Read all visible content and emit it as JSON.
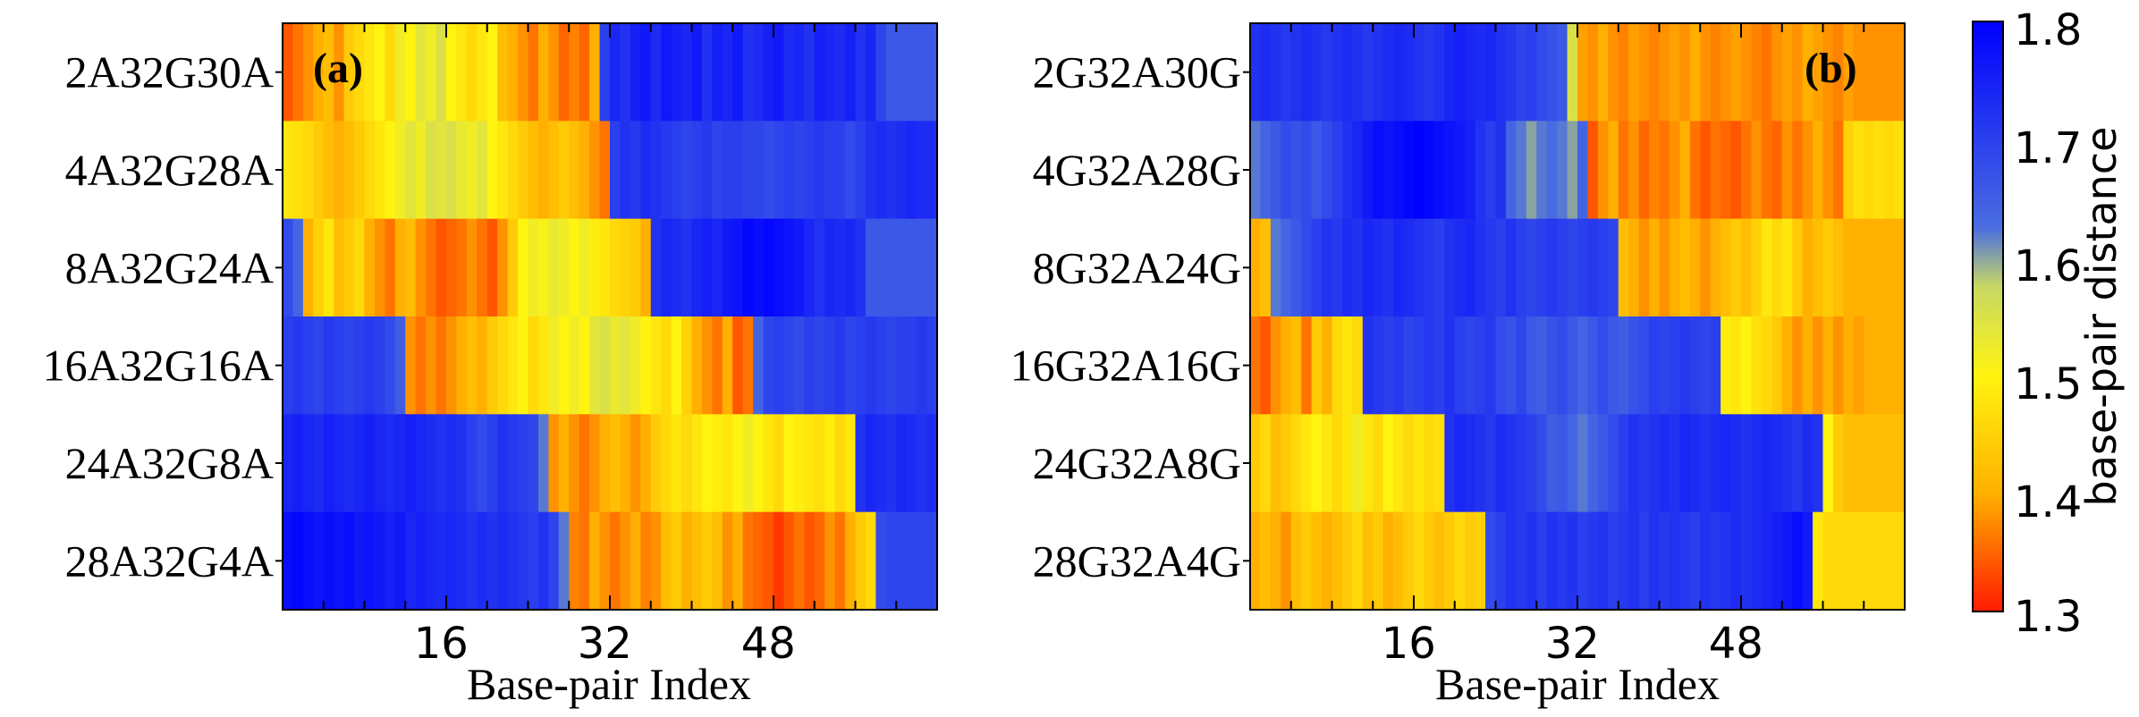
{
  "chart_data": [
    {
      "type": "heatmap",
      "panel_label": "(a)",
      "xlabel": "Base-pair Index",
      "xticks": [
        16,
        32,
        48
      ],
      "x_range": [
        1,
        64
      ],
      "rows": [
        {
          "label": "2A32G30A",
          "values": [
            1.34,
            1.36,
            1.38,
            1.4,
            1.42,
            1.38,
            1.44,
            1.46,
            1.48,
            1.5,
            1.46,
            1.52,
            1.5,
            1.54,
            1.52,
            1.55,
            1.5,
            1.48,
            1.46,
            1.48,
            1.5,
            1.42,
            1.4,
            1.38,
            1.36,
            1.4,
            1.38,
            1.35,
            1.37,
            1.35,
            1.4,
            1.7,
            1.74,
            1.72,
            1.75,
            1.76,
            1.73,
            1.76,
            1.75,
            1.74,
            1.76,
            1.72,
            1.75,
            1.74,
            1.76,
            1.72,
            1.73,
            1.75,
            1.76,
            1.73,
            1.74,
            1.72,
            1.75,
            1.74,
            1.73,
            1.75,
            1.72,
            1.74,
            1.69,
            1.66,
            1.66,
            1.66,
            1.66,
            1.66
          ]
        },
        {
          "label": "4A32G28A",
          "values": [
            1.48,
            1.47,
            1.46,
            1.44,
            1.42,
            1.4,
            1.42,
            1.44,
            1.46,
            1.48,
            1.5,
            1.52,
            1.54,
            1.52,
            1.55,
            1.54,
            1.55,
            1.53,
            1.52,
            1.54,
            1.5,
            1.48,
            1.46,
            1.44,
            1.42,
            1.4,
            1.42,
            1.44,
            1.42,
            1.4,
            1.38,
            1.36,
            1.7,
            1.72,
            1.71,
            1.73,
            1.72,
            1.71,
            1.7,
            1.69,
            1.7,
            1.71,
            1.69,
            1.7,
            1.7,
            1.69,
            1.69,
            1.68,
            1.69,
            1.7,
            1.69,
            1.7,
            1.71,
            1.7,
            1.7,
            1.68,
            1.7,
            1.72,
            1.73,
            1.72,
            1.73,
            1.74,
            1.73,
            1.73
          ]
        },
        {
          "label": "8A32G24A",
          "values": [
            1.68,
            1.64,
            1.4,
            1.45,
            1.48,
            1.42,
            1.44,
            1.46,
            1.4,
            1.38,
            1.36,
            1.4,
            1.42,
            1.38,
            1.36,
            1.34,
            1.35,
            1.36,
            1.38,
            1.36,
            1.34,
            1.38,
            1.44,
            1.5,
            1.52,
            1.51,
            1.53,
            1.52,
            1.5,
            1.52,
            1.49,
            1.48,
            1.46,
            1.45,
            1.44,
            1.4,
            1.72,
            1.74,
            1.73,
            1.72,
            1.74,
            1.75,
            1.74,
            1.76,
            1.77,
            1.79,
            1.78,
            1.79,
            1.78,
            1.77,
            1.76,
            1.74,
            1.72,
            1.74,
            1.73,
            1.74,
            1.72,
            1.66,
            1.66,
            1.66,
            1.66,
            1.66,
            1.66,
            1.66
          ]
        },
        {
          "label": "16A32G16A",
          "values": [
            1.7,
            1.71,
            1.7,
            1.69,
            1.71,
            1.7,
            1.69,
            1.7,
            1.71,
            1.7,
            1.68,
            1.65,
            1.38,
            1.36,
            1.38,
            1.36,
            1.38,
            1.4,
            1.42,
            1.4,
            1.44,
            1.46,
            1.48,
            1.5,
            1.46,
            1.48,
            1.52,
            1.5,
            1.52,
            1.5,
            1.54,
            1.55,
            1.53,
            1.54,
            1.52,
            1.5,
            1.48,
            1.46,
            1.5,
            1.45,
            1.4,
            1.38,
            1.36,
            1.4,
            1.34,
            1.36,
            1.64,
            1.69,
            1.7,
            1.69,
            1.68,
            1.7,
            1.69,
            1.7,
            1.71,
            1.69,
            1.7,
            1.71,
            1.7,
            1.69,
            1.7,
            1.7,
            1.71,
            1.7
          ]
        },
        {
          "label": "24A32G8A",
          "values": [
            1.74,
            1.75,
            1.74,
            1.73,
            1.75,
            1.74,
            1.73,
            1.74,
            1.75,
            1.74,
            1.73,
            1.74,
            1.75,
            1.74,
            1.73,
            1.72,
            1.73,
            1.72,
            1.7,
            1.68,
            1.7,
            1.72,
            1.71,
            1.7,
            1.69,
            1.62,
            1.38,
            1.4,
            1.38,
            1.36,
            1.38,
            1.4,
            1.42,
            1.4,
            1.38,
            1.4,
            1.44,
            1.46,
            1.48,
            1.46,
            1.48,
            1.5,
            1.49,
            1.48,
            1.5,
            1.52,
            1.5,
            1.48,
            1.46,
            1.5,
            1.49,
            1.48,
            1.47,
            1.49,
            1.46,
            1.48,
            1.72,
            1.74,
            1.73,
            1.72,
            1.74,
            1.73,
            1.72,
            1.73
          ]
        },
        {
          "label": "28A32G4A",
          "values": [
            1.78,
            1.79,
            1.78,
            1.77,
            1.78,
            1.77,
            1.78,
            1.76,
            1.77,
            1.76,
            1.75,
            1.76,
            1.74,
            1.75,
            1.74,
            1.73,
            1.74,
            1.73,
            1.72,
            1.73,
            1.72,
            1.73,
            1.72,
            1.71,
            1.7,
            1.72,
            1.69,
            1.62,
            1.37,
            1.36,
            1.4,
            1.38,
            1.36,
            1.38,
            1.4,
            1.37,
            1.38,
            1.42,
            1.44,
            1.4,
            1.42,
            1.44,
            1.42,
            1.38,
            1.4,
            1.36,
            1.35,
            1.34,
            1.32,
            1.34,
            1.36,
            1.34,
            1.35,
            1.38,
            1.36,
            1.4,
            1.44,
            1.46,
            1.68,
            1.69,
            1.69,
            1.69,
            1.69,
            1.69
          ]
        }
      ]
    },
    {
      "type": "heatmap",
      "panel_label": "(b)",
      "xlabel": "Base-pair Index",
      "xticks": [
        16,
        32,
        48
      ],
      "x_range": [
        1,
        64
      ],
      "rows": [
        {
          "label": "2G32A30G",
          "values": [
            1.72,
            1.73,
            1.72,
            1.71,
            1.72,
            1.73,
            1.72,
            1.71,
            1.72,
            1.73,
            1.72,
            1.71,
            1.72,
            1.73,
            1.74,
            1.73,
            1.72,
            1.71,
            1.72,
            1.74,
            1.75,
            1.74,
            1.73,
            1.74,
            1.72,
            1.71,
            1.69,
            1.7,
            1.68,
            1.67,
            1.66,
            1.55,
            1.39,
            1.38,
            1.4,
            1.38,
            1.37,
            1.39,
            1.38,
            1.37,
            1.38,
            1.39,
            1.38,
            1.4,
            1.38,
            1.37,
            1.38,
            1.39,
            1.38,
            1.37,
            1.36,
            1.38,
            1.39,
            1.38,
            1.4,
            1.39,
            1.38,
            1.37,
            1.39,
            1.38,
            1.38,
            1.38,
            1.38,
            1.38
          ]
        },
        {
          "label": "4G32A28G",
          "values": [
            1.62,
            1.64,
            1.66,
            1.68,
            1.67,
            1.68,
            1.66,
            1.68,
            1.7,
            1.72,
            1.74,
            1.76,
            1.78,
            1.77,
            1.78,
            1.79,
            1.8,
            1.79,
            1.78,
            1.77,
            1.76,
            1.75,
            1.72,
            1.7,
            1.72,
            1.64,
            1.62,
            1.6,
            1.62,
            1.63,
            1.62,
            1.6,
            1.64,
            1.34,
            1.38,
            1.4,
            1.36,
            1.38,
            1.35,
            1.37,
            1.36,
            1.38,
            1.4,
            1.36,
            1.34,
            1.36,
            1.35,
            1.34,
            1.36,
            1.38,
            1.36,
            1.35,
            1.38,
            1.36,
            1.38,
            1.4,
            1.38,
            1.36,
            1.45,
            1.47,
            1.46,
            1.47,
            1.46,
            1.47
          ]
        },
        {
          "label": "8G32A24G",
          "values": [
            1.4,
            1.42,
            1.62,
            1.64,
            1.66,
            1.68,
            1.7,
            1.72,
            1.71,
            1.73,
            1.72,
            1.74,
            1.73,
            1.72,
            1.74,
            1.73,
            1.72,
            1.71,
            1.7,
            1.72,
            1.73,
            1.74,
            1.72,
            1.71,
            1.7,
            1.72,
            1.7,
            1.69,
            1.7,
            1.71,
            1.7,
            1.69,
            1.7,
            1.71,
            1.7,
            1.69,
            1.42,
            1.4,
            1.38,
            1.4,
            1.38,
            1.4,
            1.42,
            1.4,
            1.38,
            1.4,
            1.42,
            1.44,
            1.42,
            1.45,
            1.48,
            1.46,
            1.48,
            1.44,
            1.4,
            1.42,
            1.44,
            1.42,
            1.4,
            1.4,
            1.4,
            1.4,
            1.4,
            1.4
          ]
        },
        {
          "label": "16G32A16G",
          "values": [
            1.36,
            1.34,
            1.38,
            1.4,
            1.42,
            1.36,
            1.44,
            1.4,
            1.46,
            1.48,
            1.46,
            1.72,
            1.71,
            1.7,
            1.71,
            1.69,
            1.7,
            1.71,
            1.7,
            1.72,
            1.7,
            1.69,
            1.7,
            1.71,
            1.68,
            1.67,
            1.69,
            1.66,
            1.65,
            1.67,
            1.68,
            1.66,
            1.64,
            1.66,
            1.68,
            1.66,
            1.65,
            1.67,
            1.68,
            1.7,
            1.69,
            1.7,
            1.71,
            1.7,
            1.69,
            1.7,
            1.49,
            1.48,
            1.5,
            1.47,
            1.46,
            1.44,
            1.4,
            1.38,
            1.4,
            1.38,
            1.4,
            1.38,
            1.4,
            1.39,
            1.4,
            1.4,
            1.4,
            1.4
          ]
        },
        {
          "label": "24G32A8G",
          "values": [
            1.44,
            1.46,
            1.42,
            1.44,
            1.46,
            1.48,
            1.5,
            1.48,
            1.46,
            1.48,
            1.52,
            1.48,
            1.46,
            1.5,
            1.48,
            1.46,
            1.48,
            1.46,
            1.47,
            1.72,
            1.74,
            1.73,
            1.72,
            1.71,
            1.73,
            1.72,
            1.71,
            1.7,
            1.68,
            1.65,
            1.66,
            1.64,
            1.62,
            1.64,
            1.66,
            1.68,
            1.7,
            1.72,
            1.71,
            1.72,
            1.73,
            1.72,
            1.74,
            1.73,
            1.72,
            1.73,
            1.74,
            1.73,
            1.72,
            1.73,
            1.74,
            1.73,
            1.72,
            1.71,
            1.73,
            1.72,
            1.5,
            1.44,
            1.42,
            1.42,
            1.42,
            1.42,
            1.42,
            1.42
          ]
        },
        {
          "label": "28G32A4G",
          "values": [
            1.4,
            1.42,
            1.4,
            1.38,
            1.42,
            1.44,
            1.42,
            1.4,
            1.42,
            1.44,
            1.46,
            1.42,
            1.44,
            1.4,
            1.42,
            1.44,
            1.46,
            1.44,
            1.42,
            1.44,
            1.46,
            1.44,
            1.45,
            1.68,
            1.7,
            1.72,
            1.71,
            1.72,
            1.7,
            1.72,
            1.71,
            1.72,
            1.7,
            1.71,
            1.72,
            1.7,
            1.71,
            1.72,
            1.7,
            1.72,
            1.71,
            1.72,
            1.71,
            1.7,
            1.72,
            1.71,
            1.72,
            1.73,
            1.72,
            1.73,
            1.74,
            1.75,
            1.76,
            1.78,
            1.76,
            1.48,
            1.46,
            1.46,
            1.46,
            1.46,
            1.46,
            1.46,
            1.46,
            1.46
          ]
        }
      ]
    }
  ],
  "colorbar": {
    "label": "base-pair distance",
    "min": 1.3,
    "max": 1.8,
    "ticks": [
      "1.8",
      "1.7",
      "1.6",
      "1.5",
      "1.4",
      "1.3"
    ],
    "colormap": [
      "#ff1a00",
      "#ffb000",
      "#fff410",
      "#c8d864",
      "#4a6ee0",
      "#0000ff"
    ]
  }
}
